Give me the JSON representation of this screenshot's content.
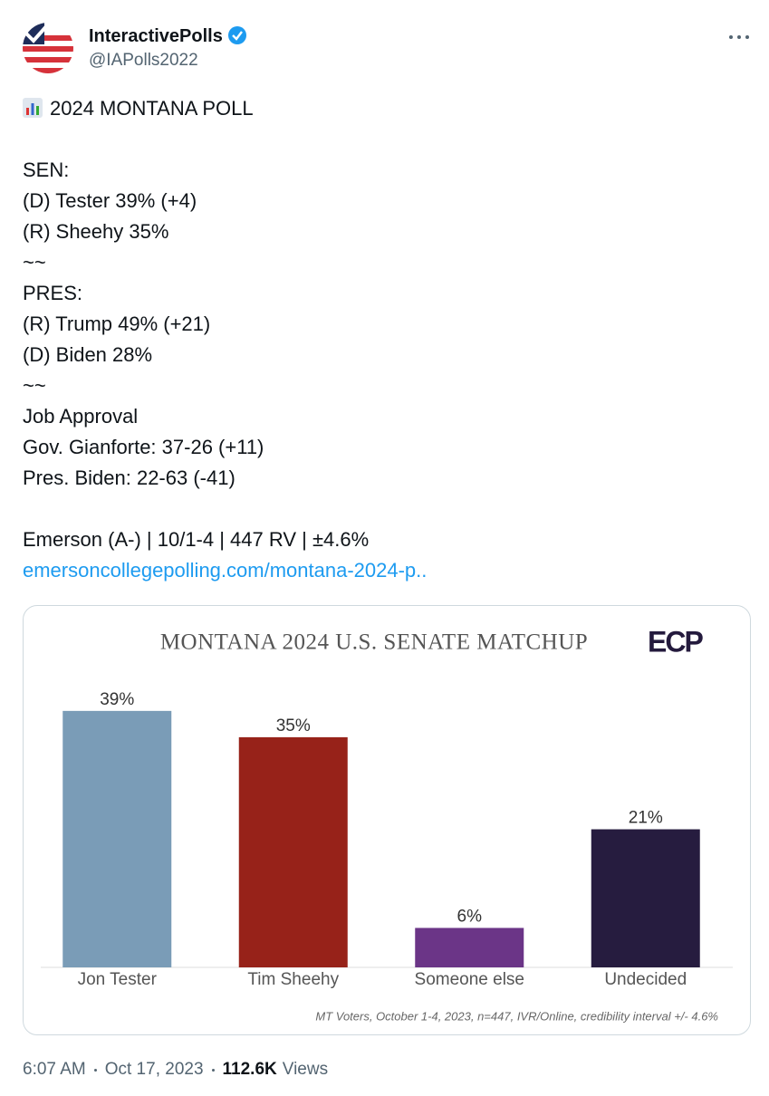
{
  "tweet": {
    "display_name": "InteractivePolls",
    "handle": "@IAPolls2022",
    "paragraphs": [
      [
        "2024 MONTANA POLL"
      ],
      [
        "SEN:",
        "(D) Tester 39% (+4)",
        "(R) Sheehy 35%",
        "~~",
        "PRES:",
        "(R) Trump 49% (+21)",
        "(D) Biden 28%",
        "~~",
        "Job Approval",
        "Gov. Gianforte: 37-26 (+11)",
        "Pres. Biden: 22-63 (-41)"
      ],
      [
        "Emerson (A-) | 10/1-4 | 447 RV | ±4.6%"
      ]
    ],
    "link": "emersoncollegepolling.com/montana-2024-p..",
    "time": "6:07 AM",
    "date": "Oct 17, 2023",
    "views_count": "112.6K",
    "views_label": "Views"
  },
  "chart_data": {
    "type": "bar",
    "title": "MONTANA 2024 U.S. SENATE MATCHUP",
    "logo": "ECP",
    "categories": [
      "Jon Tester",
      "Tim Sheehy",
      "Someone else",
      "Undecided"
    ],
    "values": [
      39,
      35,
      6,
      21
    ],
    "value_labels": [
      "39%",
      "35%",
      "6%",
      "21%"
    ],
    "colors": [
      "#7a9cb7",
      "#972219",
      "#6b3587",
      "#261c3f"
    ],
    "note": "MT Voters, October 1-4, 2023, n=447, IVR/Online, credibility interval +/- 4.6%"
  }
}
